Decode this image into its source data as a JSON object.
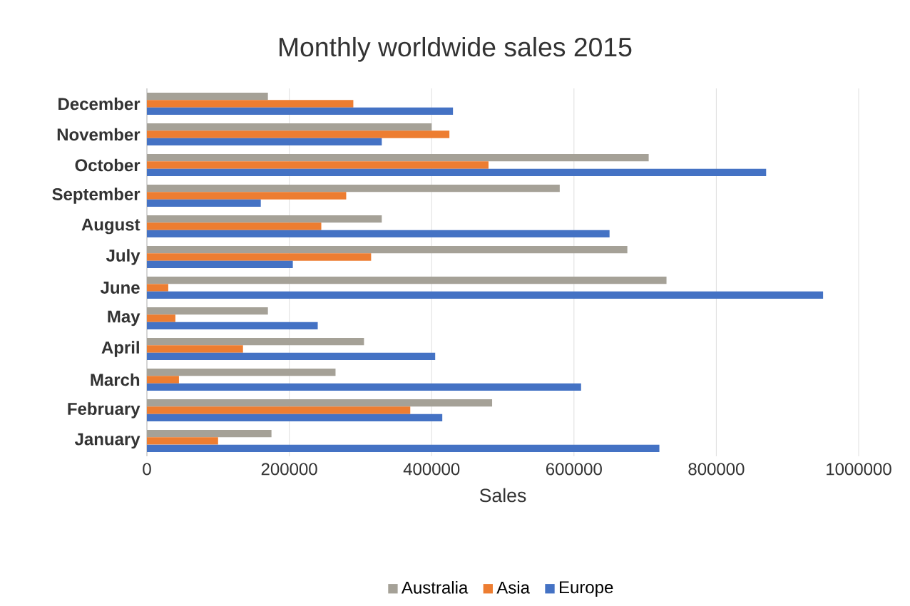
{
  "chart_data": {
    "type": "bar",
    "orientation": "horizontal",
    "title": "Monthly worldwide sales 2015",
    "xlabel": "Sales",
    "categories": [
      "December",
      "November",
      "October",
      "September",
      "August",
      "July",
      "June",
      "May",
      "April",
      "March",
      "February",
      "January"
    ],
    "series": [
      {
        "name": "Australia",
        "color": "#a5a197",
        "values": [
          170000,
          400000,
          705000,
          580000,
          330000,
          675000,
          730000,
          170000,
          305000,
          265000,
          485000,
          175000
        ]
      },
      {
        "name": "Asia",
        "color": "#ed7d31",
        "values": [
          290000,
          425000,
          480000,
          280000,
          245000,
          315000,
          30000,
          40000,
          135000,
          45000,
          370000,
          100000
        ]
      },
      {
        "name": "Europe",
        "color": "#4472c4",
        "values": [
          430000,
          330000,
          870000,
          160000,
          650000,
          205000,
          950000,
          240000,
          405000,
          610000,
          415000,
          720000
        ]
      }
    ],
    "xlim": [
      0,
      1000000
    ],
    "xticks": [
      0,
      200000,
      400000,
      600000,
      800000,
      1000000
    ],
    "grid": "x",
    "legend": "bottom"
  }
}
